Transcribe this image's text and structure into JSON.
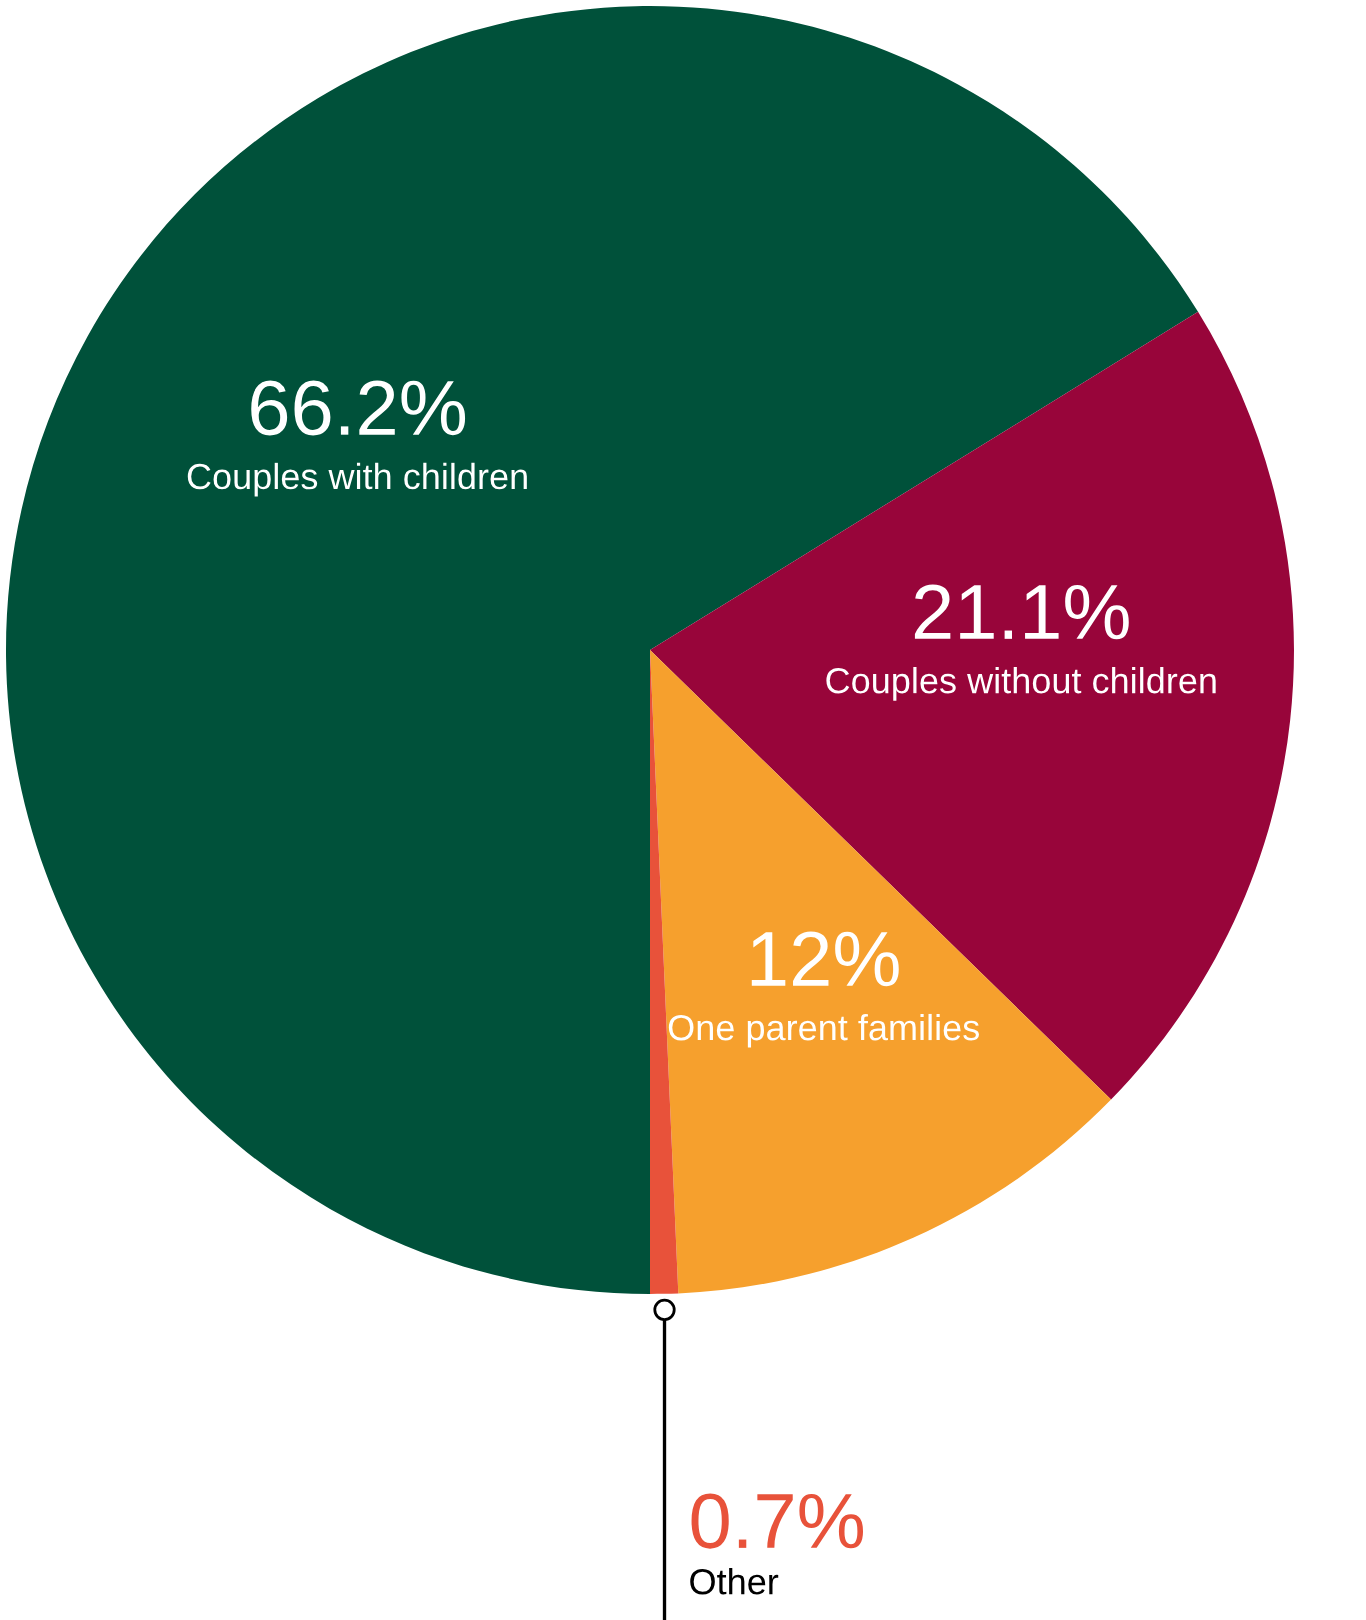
{
  "chart_data": {
    "type": "pie",
    "categories": [
      "Couples with children",
      "Couples without children",
      "One parent families",
      "Other"
    ],
    "values": [
      66.2,
      21.1,
      12,
      0.7
    ],
    "colors": [
      "#00513a",
      "#98053a",
      "#f6a02d",
      "#e8523a"
    ],
    "value_labels": [
      "66.2%",
      "21.1%",
      "12%",
      "0.7%"
    ]
  }
}
